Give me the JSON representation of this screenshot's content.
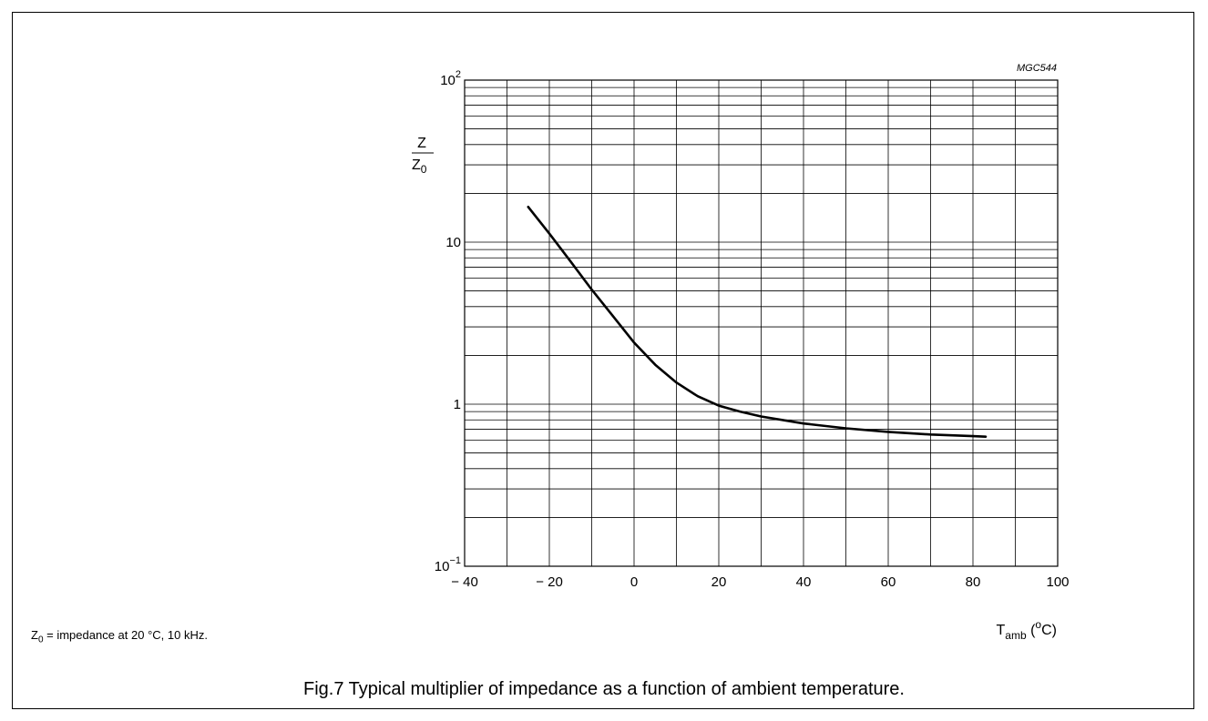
{
  "figure_code": "MGC544",
  "note": {
    "symbol": "Z",
    "subscript": "0",
    "text": " = impedance at 20 °C, 10 kHz."
  },
  "caption": "Fig.7  Typical multiplier of impedance as a function of ambient temperature.",
  "chart_data": {
    "type": "line",
    "title": "",
    "ylabel": {
      "num": "Z",
      "den": "Z",
      "den_sub": "0"
    },
    "xlabel": {
      "main": "T",
      "sub": "amb",
      "unit_open": " (",
      "unit_sup": "o",
      "unit_close": "C)"
    },
    "xlim": [
      -40,
      100
    ],
    "ylim": [
      0.1,
      100
    ],
    "yscale": "log",
    "grid": true,
    "x_ticks": [
      {
        "value": -40,
        "label": "− 40"
      },
      {
        "value": -20,
        "label": "− 20"
      },
      {
        "value": 0,
        "label": "0"
      },
      {
        "value": 20,
        "label": "20"
      },
      {
        "value": 40,
        "label": "40"
      },
      {
        "value": 60,
        "label": "60"
      },
      {
        "value": 80,
        "label": "80"
      },
      {
        "value": 100,
        "label": "100"
      }
    ],
    "y_ticks": [
      {
        "value": 100,
        "base": "10",
        "exp": "2"
      },
      {
        "value": 10,
        "base": "10",
        "exp": ""
      },
      {
        "value": 1,
        "base": "1",
        "exp": ""
      },
      {
        "value": 0.1,
        "base": "10",
        "exp": "−1"
      }
    ],
    "series": [
      {
        "x": [
          -25,
          -20,
          -15,
          -10,
          -5,
          0,
          5,
          10,
          15,
          20,
          25,
          30,
          40,
          50,
          60,
          70,
          80,
          83
        ],
        "y": [
          16.5,
          11.3,
          7.6,
          5.1,
          3.5,
          2.4,
          1.75,
          1.36,
          1.12,
          0.98,
          0.9,
          0.84,
          0.76,
          0.71,
          0.675,
          0.65,
          0.635,
          0.63
        ]
      }
    ]
  }
}
